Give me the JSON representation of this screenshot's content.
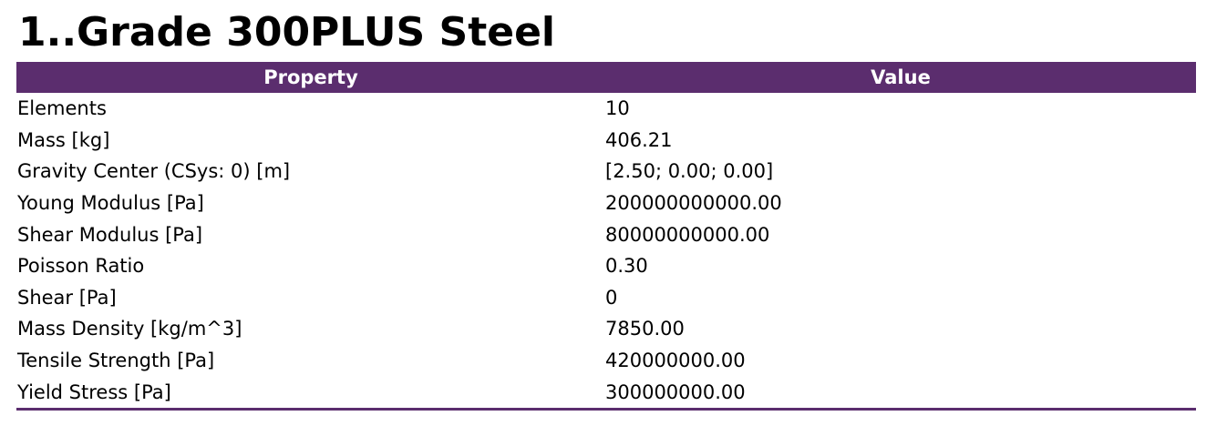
{
  "title": "1..Grade 300PLUS Steel",
  "table": {
    "header": [
      "Property",
      "Value"
    ],
    "rows": [
      [
        "Elements",
        "10"
      ],
      [
        "Mass [kg]",
        "406.21"
      ],
      [
        "Gravity Center (CSys: 0) [m]",
        "[2.50; 0.00; 0.00]"
      ],
      [
        "Young Modulus [Pa]",
        "200000000000.00"
      ],
      [
        "Shear Modulus [Pa]",
        "80000000000.00"
      ],
      [
        "Poisson Ratio",
        "0.30"
      ],
      [
        "Shear [Pa]",
        "0"
      ],
      [
        "Mass Density [kg/m^3]",
        "7850.00"
      ],
      [
        "Tensile Strength [Pa]",
        "420000000.00"
      ],
      [
        "Yield Stress [Pa]",
        "300000000.00"
      ]
    ]
  }
}
